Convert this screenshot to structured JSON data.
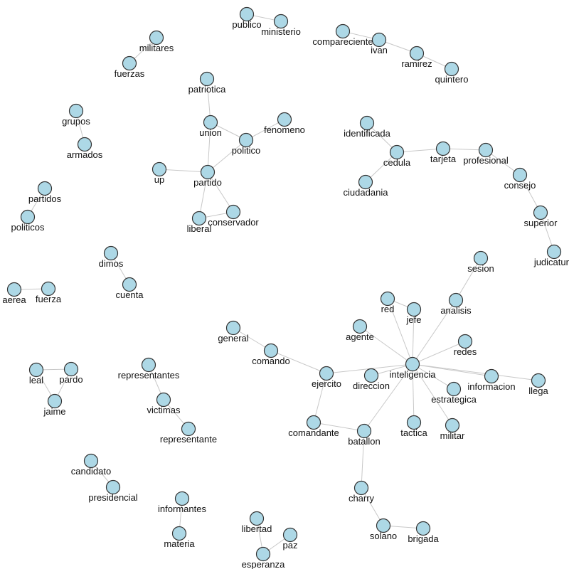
{
  "colors": {
    "node_fill": "#add8e6",
    "node_stroke": "#333333",
    "edge": "#c8c8c8",
    "label": "#111111"
  },
  "nodes": [
    {
      "id": "publico",
      "label": "publico"
    },
    {
      "id": "ministerio",
      "label": "ministerio"
    },
    {
      "id": "compareciente",
      "label": "compareciente"
    },
    {
      "id": "ivan",
      "label": "ivan"
    },
    {
      "id": "ramirez",
      "label": "ramirez"
    },
    {
      "id": "quintero",
      "label": "quintero"
    },
    {
      "id": "militares",
      "label": "militares"
    },
    {
      "id": "fuerzas",
      "label": "fuerzas"
    },
    {
      "id": "patriotica",
      "label": "patriotica"
    },
    {
      "id": "union",
      "label": "union"
    },
    {
      "id": "fenomeno",
      "label": "fenomeno"
    },
    {
      "id": "politico",
      "label": "politico"
    },
    {
      "id": "up",
      "label": "up"
    },
    {
      "id": "partido",
      "label": "partido"
    },
    {
      "id": "liberal",
      "label": "liberal"
    },
    {
      "id": "conservador",
      "label": "conservador"
    },
    {
      "id": "grupos",
      "label": "grupos"
    },
    {
      "id": "armados",
      "label": "armados"
    },
    {
      "id": "partidos",
      "label": "partidos"
    },
    {
      "id": "politicos",
      "label": "politicos"
    },
    {
      "id": "identificada",
      "label": "identificada"
    },
    {
      "id": "cedula",
      "label": "cedula"
    },
    {
      "id": "ciudadania",
      "label": "ciudadania"
    },
    {
      "id": "tarjeta",
      "label": "tarjeta"
    },
    {
      "id": "profesional",
      "label": "profesional"
    },
    {
      "id": "consejo",
      "label": "consejo"
    },
    {
      "id": "superior",
      "label": "superior"
    },
    {
      "id": "judicatura",
      "label": "judicatura"
    },
    {
      "id": "dimos",
      "label": "dimos"
    },
    {
      "id": "cuenta",
      "label": "cuenta"
    },
    {
      "id": "aerea",
      "label": "aerea"
    },
    {
      "id": "fuerza",
      "label": "fuerza"
    },
    {
      "id": "sesion",
      "label": "sesion"
    },
    {
      "id": "analisis",
      "label": "analisis"
    },
    {
      "id": "red",
      "label": "red"
    },
    {
      "id": "jefe",
      "label": "jefe"
    },
    {
      "id": "agente",
      "label": "agente"
    },
    {
      "id": "redes",
      "label": "redes"
    },
    {
      "id": "general",
      "label": "general"
    },
    {
      "id": "comando",
      "label": "comando"
    },
    {
      "id": "inteligencia",
      "label": "inteligencia"
    },
    {
      "id": "ejercito",
      "label": "ejercito"
    },
    {
      "id": "direccion",
      "label": "direccion"
    },
    {
      "id": "informacion",
      "label": "informacion"
    },
    {
      "id": "llega",
      "label": "llega"
    },
    {
      "id": "estrategica",
      "label": "estrategica"
    },
    {
      "id": "leal",
      "label": "leal"
    },
    {
      "id": "pardo",
      "label": "pardo"
    },
    {
      "id": "jaime",
      "label": "jaime"
    },
    {
      "id": "representantes",
      "label": "representantes"
    },
    {
      "id": "victimas",
      "label": "victimas"
    },
    {
      "id": "representante",
      "label": "representante"
    },
    {
      "id": "comandante",
      "label": "comandante"
    },
    {
      "id": "batallon",
      "label": "batallon"
    },
    {
      "id": "tactica",
      "label": "tactica"
    },
    {
      "id": "militar",
      "label": "militar"
    },
    {
      "id": "candidato",
      "label": "candidato"
    },
    {
      "id": "presidencial",
      "label": "presidencial"
    },
    {
      "id": "charry",
      "label": "charry"
    },
    {
      "id": "informantes",
      "label": "informantes"
    },
    {
      "id": "materia",
      "label": "materia"
    },
    {
      "id": "libertad",
      "label": "libertad"
    },
    {
      "id": "paz",
      "label": "paz"
    },
    {
      "id": "esperanza",
      "label": "esperanza"
    },
    {
      "id": "solano",
      "label": "solano"
    },
    {
      "id": "brigada",
      "label": "brigada"
    }
  ],
  "edges": [
    [
      "publico",
      "ministerio"
    ],
    [
      "compareciente",
      "ivan"
    ],
    [
      "ivan",
      "ramirez"
    ],
    [
      "ramirez",
      "quintero"
    ],
    [
      "militares",
      "fuerzas"
    ],
    [
      "patriotica",
      "union"
    ],
    [
      "union",
      "politico"
    ],
    [
      "union",
      "partido"
    ],
    [
      "fenomeno",
      "politico"
    ],
    [
      "politico",
      "partido"
    ],
    [
      "up",
      "partido"
    ],
    [
      "partido",
      "liberal"
    ],
    [
      "partido",
      "conservador"
    ],
    [
      "liberal",
      "conservador"
    ],
    [
      "grupos",
      "armados"
    ],
    [
      "partidos",
      "politicos"
    ],
    [
      "identificada",
      "cedula"
    ],
    [
      "cedula",
      "ciudadania"
    ],
    [
      "cedula",
      "tarjeta"
    ],
    [
      "tarjeta",
      "profesional"
    ],
    [
      "profesional",
      "consejo"
    ],
    [
      "consejo",
      "superior"
    ],
    [
      "superior",
      "judicatura"
    ],
    [
      "dimos",
      "cuenta"
    ],
    [
      "aerea",
      "fuerza"
    ],
    [
      "sesion",
      "analisis"
    ],
    [
      "analisis",
      "inteligencia"
    ],
    [
      "red",
      "jefe"
    ],
    [
      "red",
      "inteligencia"
    ],
    [
      "jefe",
      "inteligencia"
    ],
    [
      "agente",
      "inteligencia"
    ],
    [
      "redes",
      "inteligencia"
    ],
    [
      "general",
      "comando"
    ],
    [
      "comando",
      "ejercito"
    ],
    [
      "ejercito",
      "inteligencia"
    ],
    [
      "ejercito",
      "comandante"
    ],
    [
      "direccion",
      "inteligencia"
    ],
    [
      "inteligencia",
      "informacion"
    ],
    [
      "inteligencia",
      "llega"
    ],
    [
      "inteligencia",
      "estrategica"
    ],
    [
      "inteligencia",
      "batallon"
    ],
    [
      "inteligencia",
      "tactica"
    ],
    [
      "inteligencia",
      "militar"
    ],
    [
      "leal",
      "pardo"
    ],
    [
      "leal",
      "jaime"
    ],
    [
      "pardo",
      "jaime"
    ],
    [
      "representantes",
      "victimas"
    ],
    [
      "victimas",
      "representante"
    ],
    [
      "comandante",
      "batallon"
    ],
    [
      "batallon",
      "charry"
    ],
    [
      "candidato",
      "presidencial"
    ],
    [
      "charry",
      "solano"
    ],
    [
      "solano",
      "brigada"
    ],
    [
      "informantes",
      "materia"
    ],
    [
      "libertad",
      "esperanza"
    ],
    [
      "paz",
      "esperanza"
    ]
  ]
}
